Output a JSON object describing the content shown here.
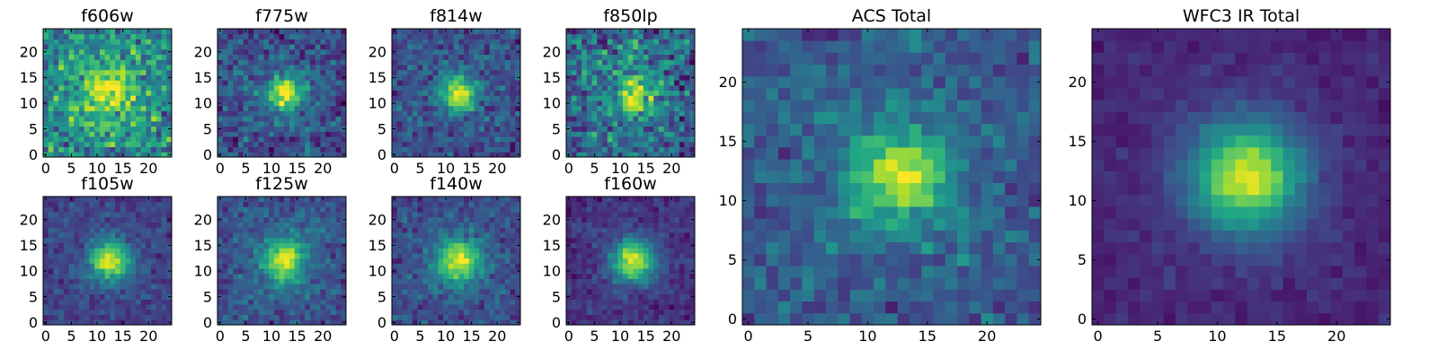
{
  "chart_data": {
    "type": "heatmap",
    "colormap": "viridis",
    "grid": false,
    "panels": [
      {
        "title": "f606w",
        "xticks": [
          0,
          5,
          10,
          15,
          20
        ],
        "yticks": [
          0,
          5,
          10,
          15,
          20
        ],
        "xlim": [
          -0.5,
          24.5
        ],
        "ylim": [
          -0.5,
          24.5
        ],
        "center": [
          12,
          12
        ],
        "peak": 0.42,
        "sigma": 2.6,
        "background": 0.6,
        "noise": 0.14,
        "description": "noisy, faint source near center"
      },
      {
        "title": "f775w",
        "xticks": [
          0,
          5,
          10,
          15,
          20
        ],
        "yticks": [
          0,
          5,
          10,
          15,
          20
        ],
        "xlim": [
          -0.5,
          24.5
        ],
        "ylim": [
          -0.5,
          24.5
        ],
        "center": [
          12.5,
          12
        ],
        "peak": 0.65,
        "sigma": 2.4,
        "background": 0.3,
        "noise": 0.1,
        "description": "compact source at center"
      },
      {
        "title": "f814w",
        "xticks": [
          0,
          5,
          10,
          15,
          20
        ],
        "yticks": [
          0,
          5,
          10,
          15,
          20
        ],
        "xlim": [
          -0.5,
          24.5
        ],
        "ylim": [
          -0.5,
          24.5
        ],
        "center": [
          12.5,
          12
        ],
        "peak": 0.65,
        "sigma": 2.3,
        "background": 0.3,
        "noise": 0.09,
        "description": "compact source at center"
      },
      {
        "title": "f850lp",
        "xticks": [
          0,
          5,
          10,
          15,
          20
        ],
        "yticks": [
          0,
          5,
          10,
          15,
          20
        ],
        "xlim": [
          -0.5,
          24.5
        ],
        "ylim": [
          -0.5,
          24.5
        ],
        "center": [
          12.5,
          12
        ],
        "peak": 0.5,
        "sigma": 2.6,
        "background": 0.42,
        "noise": 0.15,
        "description": "noisy source at center"
      },
      {
        "title": "f105w",
        "xticks": [
          0,
          5,
          10,
          15,
          20
        ],
        "yticks": [
          0,
          5,
          10,
          15,
          20
        ],
        "xlim": [
          -0.5,
          24.5
        ],
        "ylim": [
          -0.5,
          24.5
        ],
        "center": [
          12.5,
          12
        ],
        "peak": 0.72,
        "sigma": 2.6,
        "background": 0.25,
        "noise": 0.06,
        "description": "bright extended source"
      },
      {
        "title": "f125w",
        "xticks": [
          0,
          5,
          10,
          15,
          20
        ],
        "yticks": [
          0,
          5,
          10,
          15,
          20
        ],
        "xlim": [
          -0.5,
          24.5
        ],
        "ylim": [
          -0.5,
          24.5
        ],
        "center": [
          12.5,
          12
        ],
        "peak": 0.65,
        "sigma": 2.7,
        "background": 0.32,
        "noise": 0.07,
        "description": "bright extended source"
      },
      {
        "title": "f140w",
        "xticks": [
          0,
          5,
          10,
          15,
          20
        ],
        "yticks": [
          0,
          5,
          10,
          15,
          20
        ],
        "xlim": [
          -0.5,
          24.5
        ],
        "ylim": [
          -0.5,
          24.5
        ],
        "center": [
          12.5,
          12
        ],
        "peak": 0.68,
        "sigma": 2.8,
        "background": 0.3,
        "noise": 0.07,
        "description": "bright extended source"
      },
      {
        "title": "f160w",
        "xticks": [
          0,
          5,
          10,
          15,
          20
        ],
        "yticks": [
          0,
          5,
          10,
          15,
          20
        ],
        "xlim": [
          -0.5,
          24.5
        ],
        "ylim": [
          -0.5,
          24.5
        ],
        "center": [
          12.5,
          12
        ],
        "peak": 0.75,
        "sigma": 2.9,
        "background": 0.18,
        "noise": 0.05,
        "description": "bright extended source"
      },
      {
        "title": "ACS Total",
        "xticks": [
          0,
          5,
          10,
          15,
          20
        ],
        "yticks": [
          0,
          5,
          10,
          15,
          20
        ],
        "xlim": [
          -0.5,
          24.5
        ],
        "ylim": [
          -0.5,
          24.5
        ],
        "center": [
          12.5,
          12
        ],
        "peak": 0.62,
        "sigma": 2.5,
        "background": 0.35,
        "noise": 0.08,
        "description": "combined optical image, blocky source at center"
      },
      {
        "title": "WFC3 IR Total",
        "xticks": [
          0,
          5,
          10,
          15,
          20
        ],
        "yticks": [
          0,
          5,
          10,
          15,
          20
        ],
        "xlim": [
          -0.5,
          24.5
        ],
        "ylim": [
          -0.5,
          24.5
        ],
        "center": [
          12.5,
          12
        ],
        "peak": 0.8,
        "sigma": 3.2,
        "background": 0.14,
        "noise": 0.03,
        "description": "combined infrared image, smooth extended source"
      }
    ]
  }
}
